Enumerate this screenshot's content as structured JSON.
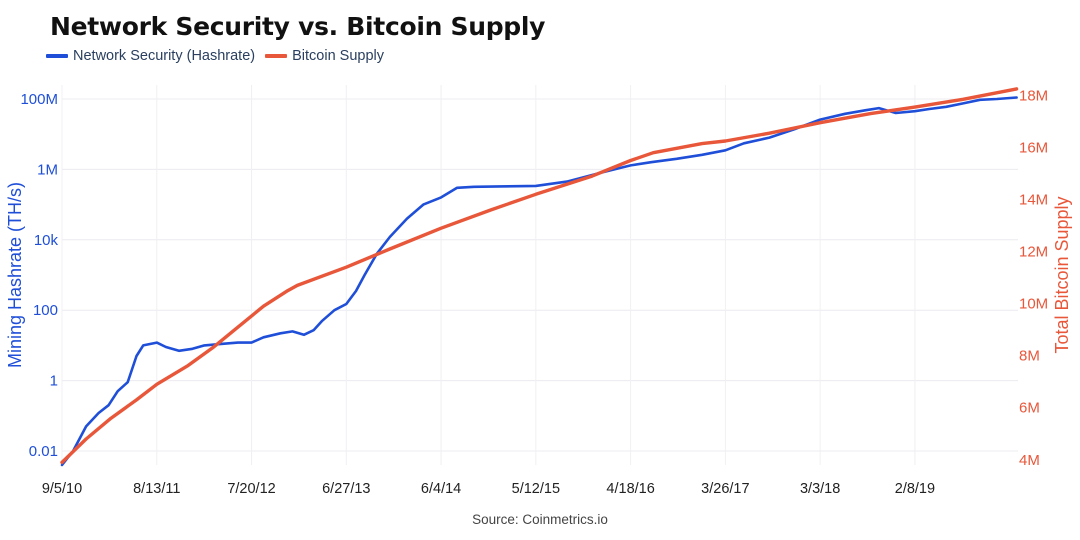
{
  "chart_data": {
    "type": "line",
    "title": "Network Security vs. Bitcoin Supply",
    "source": "Source: Coinmetrics.io",
    "legend_position": "top-left",
    "grid": true,
    "x_tick_labels": [
      "9/5/10",
      "8/13/11",
      "7/20/12",
      "6/27/13",
      "6/4/14",
      "5/12/15",
      "4/18/16",
      "3/26/17",
      "3/3/18",
      "2/8/19"
    ],
    "x_range": [
      "2010-09-05",
      "2020-02-15"
    ],
    "y_left": {
      "label": "Mining Hashrate (TH/s)",
      "scale": "log",
      "range": [
        0.004,
        250000000
      ],
      "tick_values": [
        0.01,
        1,
        100,
        10000,
        1000000,
        100000000
      ],
      "tick_labels": [
        "0.01",
        "1",
        "100",
        "10k",
        "1M",
        "100M"
      ],
      "color": "#1f4fd8"
    },
    "y_right": {
      "label": "Total Bitcoin Supply",
      "scale": "linear",
      "range": [
        3800000,
        18400000
      ],
      "tick_values": [
        4000000,
        6000000,
        8000000,
        10000000,
        12000000,
        14000000,
        16000000,
        18000000
      ],
      "tick_labels": [
        "4M",
        "6M",
        "8M",
        "10M",
        "12M",
        "14M",
        "16M",
        "18M"
      ],
      "color": "#e8573a"
    },
    "series": [
      {
        "name": "Network Security (Hashrate)",
        "axis": "left",
        "color": "#1f4fd8",
        "points": [
          [
            "2010-09-05",
            0.004
          ],
          [
            "2010-10-15",
            0.01
          ],
          [
            "2010-12-01",
            0.05
          ],
          [
            "2011-01-15",
            0.12
          ],
          [
            "2011-02-20",
            0.2
          ],
          [
            "2011-03-25",
            0.5
          ],
          [
            "2011-04-30",
            0.9
          ],
          [
            "2011-06-01",
            5
          ],
          [
            "2011-06-25",
            10
          ],
          [
            "2011-08-13",
            12
          ],
          [
            "2011-09-15",
            9
          ],
          [
            "2011-11-01",
            7
          ],
          [
            "2011-12-20",
            8
          ],
          [
            "2012-02-01",
            10
          ],
          [
            "2012-04-01",
            11
          ],
          [
            "2012-06-01",
            12
          ],
          [
            "2012-07-20",
            12
          ],
          [
            "2012-09-01",
            17
          ],
          [
            "2012-11-01",
            22
          ],
          [
            "2012-12-15",
            25
          ],
          [
            "2013-01-25",
            20
          ],
          [
            "2013-03-01",
            27
          ],
          [
            "2013-04-01",
            50
          ],
          [
            "2013-05-15",
            100
          ],
          [
            "2013-06-27",
            150
          ],
          [
            "2013-08-01",
            350
          ],
          [
            "2013-09-01",
            1000
          ],
          [
            "2013-10-15",
            4000
          ],
          [
            "2013-12-01",
            12000
          ],
          [
            "2014-02-01",
            40000
          ],
          [
            "2014-04-01",
            100000
          ],
          [
            "2014-06-04",
            160000
          ],
          [
            "2014-08-01",
            300000
          ],
          [
            "2014-10-01",
            320000
          ],
          [
            "2015-01-01",
            330000
          ],
          [
            "2015-05-12",
            340000
          ],
          [
            "2015-09-01",
            450000
          ],
          [
            "2016-01-01",
            800000
          ],
          [
            "2016-04-18",
            1300000
          ],
          [
            "2016-07-01",
            1600000
          ],
          [
            "2016-10-01",
            2000000
          ],
          [
            "2017-01-01",
            2600000
          ],
          [
            "2017-03-26",
            3500000
          ],
          [
            "2017-06-01",
            5500000
          ],
          [
            "2017-09-01",
            8000000
          ],
          [
            "2017-12-01",
            14000000
          ],
          [
            "2018-03-03",
            26000000
          ],
          [
            "2018-06-01",
            38000000
          ],
          [
            "2018-08-15",
            48000000
          ],
          [
            "2018-10-01",
            55000000
          ],
          [
            "2018-12-01",
            40000000
          ],
          [
            "2019-02-08",
            45000000
          ],
          [
            "2019-04-01",
            52000000
          ],
          [
            "2019-06-01",
            60000000
          ],
          [
            "2019-08-01",
            75000000
          ],
          [
            "2019-10-01",
            95000000
          ],
          [
            "2019-12-01",
            100000000
          ],
          [
            "2020-02-10",
            110000000
          ]
        ]
      },
      {
        "name": "Bitcoin Supply",
        "axis": "right",
        "color": "#e8573a",
        "points": [
          [
            "2010-09-05",
            3900000
          ],
          [
            "2010-12-01",
            4800000
          ],
          [
            "2011-03-01",
            5600000
          ],
          [
            "2011-06-01",
            6300000
          ],
          [
            "2011-08-13",
            6900000
          ],
          [
            "2011-12-01",
            7600000
          ],
          [
            "2012-03-01",
            8300000
          ],
          [
            "2012-06-01",
            9100000
          ],
          [
            "2012-09-01",
            9900000
          ],
          [
            "2012-11-28",
            10500000
          ],
          [
            "2013-01-01",
            10700000
          ],
          [
            "2013-06-27",
            11400000
          ],
          [
            "2013-12-01",
            12100000
          ],
          [
            "2014-06-04",
            12900000
          ],
          [
            "2014-12-01",
            13600000
          ],
          [
            "2015-05-12",
            14200000
          ],
          [
            "2015-12-01",
            14900000
          ],
          [
            "2016-04-18",
            15500000
          ],
          [
            "2016-07-09",
            15800000
          ],
          [
            "2017-01-01",
            16150000
          ],
          [
            "2017-03-26",
            16250000
          ],
          [
            "2017-09-01",
            16550000
          ],
          [
            "2018-03-03",
            16950000
          ],
          [
            "2018-09-01",
            17300000
          ],
          [
            "2019-02-08",
            17550000
          ],
          [
            "2019-08-01",
            17850000
          ],
          [
            "2020-02-10",
            18250000
          ]
        ]
      }
    ]
  }
}
